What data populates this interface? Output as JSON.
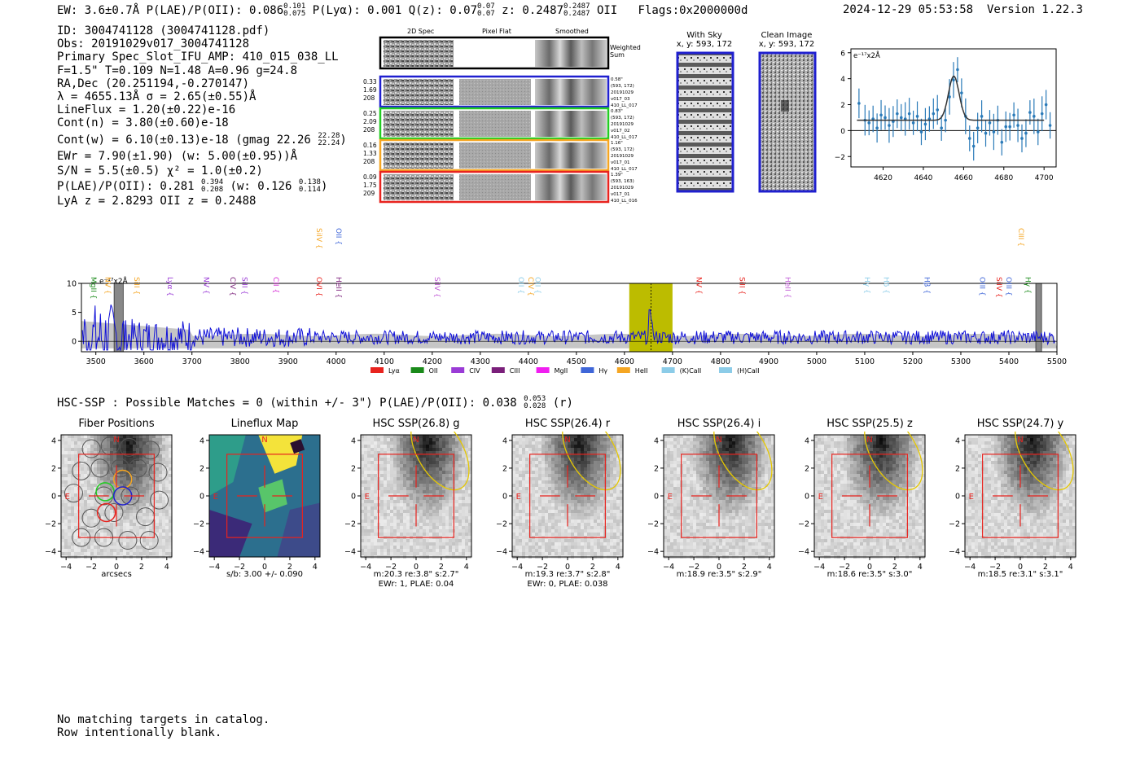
{
  "header": {
    "ew": "EW: 3.6±0.7Å",
    "plae": "P(LAE)/P(OII): 0.086",
    "plae_hi": "0.101",
    "plae_lo": "0.075",
    "plya": "P(Lyα): 0.001",
    "q": "Q(z): 0.07",
    "q_hi": "0.07",
    "q_lo": "0.07",
    "z": "z: 0.2487",
    "z_hi": "0.2487",
    "z_lo": "0.2487",
    "z_tail": "OII",
    "flags": "Flags:0x2000000d",
    "date": "2024-12-29 05:53:58",
    "version": "Version 1.22.3"
  },
  "info": {
    "id": "ID: 3004741128 (3004741128.pdf)",
    "obs": "Obs: 20191029v017_3004741128",
    "primary": "Primary Spec_Slot_IFU_AMP: 410_015_038_LL",
    "fiber": "F=1.5\"  T=0.109  N=1.48  A=0.96  g=24.8",
    "radec": "RA,Dec (20.251194,-0.270147)",
    "lambda": "λ = 4655.13Å   σ = 2.65(±0.55)Å",
    "lineflux": "LineFlux = 1.20(±0.22)e-16",
    "contn": "Cont(n) = 3.80(±0.60)e-18",
    "contw": "Cont(w) = 6.10(±0.13)e-18 (gmag 22.26",
    "contw_hi": "22.28",
    "contw_lo": "22.24",
    "contw_tail": ")",
    "ewr": "EWr = 7.90(±1.90) (w: 5.00(±0.95))Å",
    "sn": "S/N = 5.5(±0.5)  χ² = 1.0(±0.2)",
    "plae2": "P(LAE)/P(OII): 0.281",
    "plae2_hi": "0.394",
    "plae2_lo": "0.208",
    "plae2_w": "(w: 0.126",
    "plae2_w_hi": "0.138",
    "plae2_w_lo": "0.114",
    "plae2_tail": ")",
    "lya": "LyA z = 2.8293  OII z = 0.2488"
  },
  "cutouts": {
    "col_2d": "2D Spec",
    "col_flat": "Pixel Flat",
    "col_smooth": "Smoothed",
    "weighted": "Weighted Sum",
    "rows": [
      {
        "left": [
          "0.33",
          "1.69",
          "208"
        ],
        "right": [
          "0.58\"",
          "(593, 172)",
          "20191029",
          "v017_03",
          "410_LL_017"
        ],
        "color": "#1f1fcf"
      },
      {
        "left": [
          "0.25",
          "2.09",
          "208"
        ],
        "right": [
          "0.83\"",
          "(593, 172)",
          "20191029",
          "v017_02",
          "410_LL_017"
        ],
        "color": "#22cc22"
      },
      {
        "left": [
          "0.16",
          "1.33",
          "208"
        ],
        "right": [
          "1.16\"",
          "(593, 172)",
          "20191029",
          "v017_01",
          "410_LL_017"
        ],
        "color": "#f5a623"
      },
      {
        "left": [
          "0.09",
          "1.75",
          "209"
        ],
        "right": [
          "1.39\"",
          "(593, 163)",
          "20191029",
          "v017_01",
          "410_LL_016"
        ],
        "color": "#e8231e"
      }
    ]
  },
  "sky": {
    "with_sky": "With Sky",
    "clean": "Clean Image",
    "xy1": "x, y: 593, 172",
    "xy2": "x, y: 593, 172"
  },
  "fit": {
    "unit": "e⁻¹⁷x2Å"
  },
  "spectrum": {
    "unit": "e⁻¹⁷x2Å",
    "lines_top": [
      {
        "label": "SiIV",
        "wave": 3960,
        "color": "#f5a623"
      },
      {
        "label": "OII",
        "wave": 4000,
        "color": "#3f66d8"
      },
      {
        "label": "CIII",
        "wave": 5420,
        "color": "#f5a623"
      }
    ],
    "lines": [
      {
        "label": "MgII",
        "wave": 3490,
        "color": "#1a8a1a"
      },
      {
        "label": "NV",
        "wave": 3520,
        "color": "#f5a623"
      },
      {
        "label": "SiII",
        "wave": 3580,
        "color": "#f5a623"
      },
      {
        "label": "Lyα",
        "wave": 3650,
        "color": "#9a3bd6"
      },
      {
        "label": "NV",
        "wave": 3725,
        "color": "#9a3bd6"
      },
      {
        "label": "CIV",
        "wave": 3780,
        "color": "#7a1f7a"
      },
      {
        "label": "SiII",
        "wave": 3805,
        "color": "#9a3bd6"
      },
      {
        "label": "CII",
        "wave": 3870,
        "color": "#d62bd6"
      },
      {
        "label": "OVI",
        "wave": 3960,
        "color": "#e8231e"
      },
      {
        "label": "HeII",
        "wave": 4000,
        "color": "#7a1f7a"
      },
      {
        "label": "SiIV",
        "wave": 4205,
        "color": "#c05ad6"
      },
      {
        "label": "OII",
        "wave": 4380,
        "color": "#8ccce8"
      },
      {
        "label": "CIV",
        "wave": 4400,
        "color": "#f5a623"
      },
      {
        "label": "OII",
        "wave": 4415,
        "color": "#8ccce8"
      },
      {
        "label": "NV",
        "wave": 4750,
        "color": "#e8231e"
      },
      {
        "label": "SiII",
        "wave": 4840,
        "color": "#e8231e"
      },
      {
        "label": "HeII",
        "wave": 4935,
        "color": "#c05ad6"
      },
      {
        "label": "Hγ",
        "wave": 5100,
        "color": "#8ccce8"
      },
      {
        "label": "Hδ",
        "wave": 5140,
        "color": "#8ccce8"
      },
      {
        "label": "Hβ",
        "wave": 5225,
        "color": "#3f66d8"
      },
      {
        "label": "OIII",
        "wave": 5340,
        "color": "#3f66d8"
      },
      {
        "label": "SiIV",
        "wave": 5375,
        "color": "#e8231e"
      },
      {
        "label": "OIII",
        "wave": 5395,
        "color": "#3f66d8"
      },
      {
        "label": "Hγ",
        "wave": 5435,
        "color": "#1a8a1a"
      }
    ],
    "legend": [
      {
        "label": "Lyα",
        "color": "#e8231e"
      },
      {
        "label": "OII",
        "color": "#1a8a1a"
      },
      {
        "label": "CIV",
        "color": "#9a3bd6"
      },
      {
        "label": "CIII",
        "color": "#7a1f7a"
      },
      {
        "label": "MgII",
        "color": "#f01ef0"
      },
      {
        "label": "Hγ",
        "color": "#3f66d8"
      },
      {
        "label": "HeII",
        "color": "#f5a623"
      },
      {
        "label": "(K)CaII",
        "color": "#8ccce8"
      },
      {
        "label": "(H)CaII",
        "color": "#8ccce8"
      }
    ]
  },
  "hsc_line": {
    "text": "HSC-SSP : Possible Matches = 0 (within +/- 3\")  P(LAE)/P(OII): 0.038",
    "hi": "0.053",
    "lo": "0.028",
    "tail": "(r)"
  },
  "panels": [
    {
      "title": "Fiber Positions",
      "cap1": "arcsecs",
      "cap2": ""
    },
    {
      "title": "Lineflux Map",
      "cap1": "s/b: 3.00 +/- 0.090",
      "cap2": ""
    },
    {
      "title": "HSC SSP(26.8) g",
      "cap1": "m:20.3  re:3.8\"  s:2.7\"",
      "cap2": "EWr: 1, PLAE: 0.04"
    },
    {
      "title": "HSC SSP(26.4) r",
      "cap1": "m:19.3  re:3.7\"  s:2.8\"",
      "cap2": "EWr: 0, PLAE: 0.038"
    },
    {
      "title": "HSC SSP(26.4) i",
      "cap1": "m:18.9  re:3.5\"  s:2.9\"",
      "cap2": ""
    },
    {
      "title": "HSC SSP(25.5) z",
      "cap1": "m:18.6  re:3.5\"  s:3.0\"",
      "cap2": ""
    },
    {
      "title": "HSC SSP(24.7) y",
      "cap1": "m:18.5  re:3.1\"  s:3.1\"",
      "cap2": ""
    }
  ],
  "panel_labels": {
    "north": "N",
    "east": "E"
  },
  "footer": {
    "line1": "No matching targets in catalog.",
    "line2": "Row intentionally blank."
  },
  "chart_data": [
    {
      "type": "line",
      "title": "Emission line fit",
      "ylabel": "e⁻¹⁷x2Å",
      "xlim": [
        4604,
        4706
      ],
      "ylim": [
        -2.8,
        6.3
      ],
      "xticks": [
        "4620",
        "4640",
        "4660",
        "4680",
        "4700"
      ],
      "yticks": [
        "-2",
        "0",
        "2",
        "4",
        "6"
      ],
      "x": [
        4608,
        4611,
        4613,
        4615,
        4617,
        4619,
        4621,
        4623,
        4625,
        4627,
        4629,
        4631,
        4633,
        4635,
        4637,
        4639,
        4641,
        4643,
        4645,
        4647,
        4649,
        4651,
        4653,
        4655,
        4657,
        4659,
        4661,
        4663,
        4665,
        4667,
        4669,
        4671,
        4673,
        4675,
        4677,
        4679,
        4681,
        4683,
        4685,
        4687,
        4689,
        4691,
        4693,
        4695,
        4697,
        4699,
        4701,
        4703
      ],
      "values": [
        2.1,
        0.8,
        0.6,
        0.9,
        0.2,
        1.2,
        1.0,
        0.4,
        0.7,
        1.3,
        1.0,
        0.9,
        1.3,
        0.6,
        1.1,
        -0.1,
        0.5,
        0.9,
        1.3,
        1.6,
        0.2,
        0.8,
        2.6,
        3.9,
        4.7,
        2.9,
        1.1,
        -0.6,
        -1.2,
        0.2,
        1.1,
        -0.2,
        0.6,
        -0.1,
        0.8,
        -0.9,
        0.3,
        0.3,
        1.2,
        0.4,
        -0.6,
        -0.2,
        1.4,
        1.1,
        -0.1,
        1.3,
        2.0,
        0.4
      ],
      "fit_peak": 4655.13,
      "fit_sigma": 2.65,
      "fit_amplitude": 3.4,
      "fit_continuum": 0.8
    },
    {
      "type": "line",
      "title": "Full spectrum",
      "ylabel": "e⁻¹⁷x2Å",
      "xlim": [
        3470,
        5500
      ],
      "ylim": [
        -1.8,
        10
      ],
      "xticks": [
        "3500",
        "3600",
        "3700",
        "3800",
        "3900",
        "4000",
        "4100",
        "4200",
        "4300",
        "4400",
        "4500",
        "4600",
        "4700",
        "4800",
        "4900",
        "5000",
        "5100",
        "5200",
        "5300",
        "5400",
        "5500"
      ],
      "yticks": [
        "0",
        "5",
        "10"
      ],
      "highlight_range": [
        4610,
        4700
      ],
      "line_wave": 4655.13,
      "masked_ranges": [
        [
          3538,
          3557
        ],
        [
          5456,
          5468
        ]
      ]
    }
  ]
}
